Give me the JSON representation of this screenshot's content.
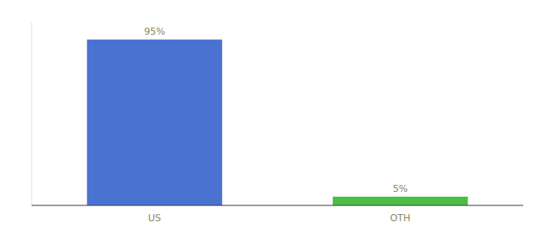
{
  "chart_data": {
    "type": "bar",
    "categories": [
      "US",
      "OTH"
    ],
    "values": [
      95,
      5
    ],
    "value_labels": [
      "95%",
      "5%"
    ],
    "colors": [
      "#4a72d1",
      "#4dbe44"
    ],
    "ylim": [
      0,
      105
    ],
    "data_labels": true,
    "tick_labels": "x"
  }
}
